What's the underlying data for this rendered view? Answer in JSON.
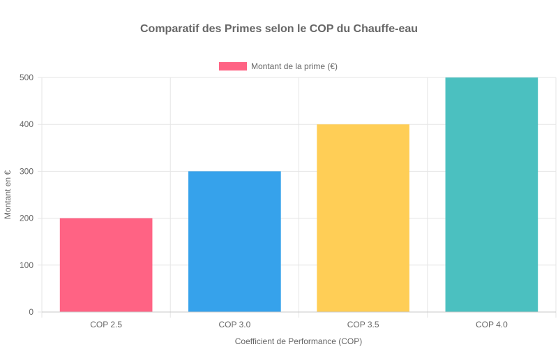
{
  "chart_data": {
    "type": "bar",
    "title": "Comparatif des Primes selon le COP du Chauffe-eau",
    "xlabel": "Coefficient de Performance (COP)",
    "ylabel": "Montant en €",
    "categories": [
      "COP 2.5",
      "COP 3.0",
      "COP 3.5",
      "COP 4.0"
    ],
    "series": [
      {
        "name": "Montant de la prime (€)",
        "values": [
          200,
          300,
          400,
          500
        ],
        "colors": [
          "#ff6384",
          "#36a2eb",
          "#ffce56",
          "#4bc0c0"
        ]
      }
    ],
    "ylim": [
      0,
      500
    ],
    "yticks": [
      0,
      100,
      200,
      300,
      400,
      500
    ],
    "grid": true,
    "legend_position": "top",
    "legend_color": "#ff6384"
  }
}
